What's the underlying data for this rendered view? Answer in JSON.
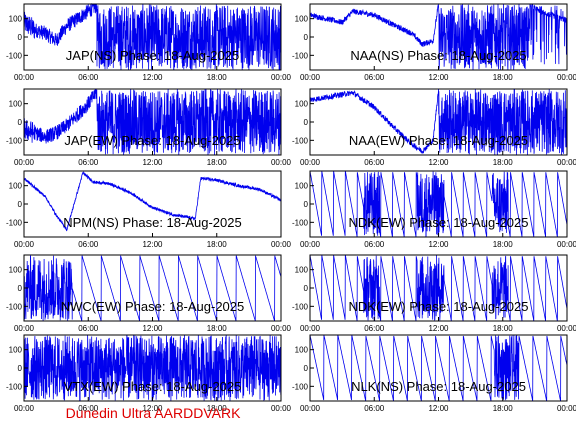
{
  "colors": {
    "trace": "#0000ee",
    "frame": "#000000",
    "footer": "#dd0000",
    "background": "#ffffff"
  },
  "footer": {
    "text": "Dunedin Ultra AARDDVARK"
  },
  "chart_data": [
    {
      "type": "line",
      "title": "JAP(NS) Phase: 18-Aug-2025",
      "ylim": [
        -180,
        180
      ],
      "yticks": [
        100,
        0,
        -100
      ],
      "xticks": [
        "00:00",
        "06:00",
        "12:00",
        "18:00",
        "00:00"
      ],
      "xlim_hours": [
        0,
        24
      ],
      "pattern": "noise-sat",
      "series": [
        {
          "values": [
            [
              0,
              80
            ],
            [
              1,
              40
            ],
            [
              2,
              20
            ],
            [
              3,
              -20
            ],
            [
              4,
              60
            ],
            [
              5,
              100
            ],
            [
              6,
              140
            ],
            [
              7,
              180
            ],
            [
              24,
              180
            ]
          ]
        }
      ]
    },
    {
      "type": "line",
      "title": "NAA(NS) Phase: 18-Aug-2025",
      "ylim": [
        -180,
        180
      ],
      "yticks": [
        100,
        0,
        -100
      ],
      "xticks": [
        "00:00",
        "06:00",
        "12:00",
        "18:00",
        "00:00"
      ],
      "xlim_hours": [
        0,
        24
      ],
      "pattern": "naa",
      "series": [
        {
          "values": [
            [
              0,
              120
            ],
            [
              3,
              80
            ],
            [
              4,
              140
            ],
            [
              6,
              120
            ],
            [
              8,
              60
            ],
            [
              9.5,
              20
            ],
            [
              10.5,
              -40
            ],
            [
              11.5,
              -20
            ],
            [
              12,
              180
            ],
            [
              20.5,
              180
            ],
            [
              21.5,
              140
            ],
            [
              23,
              110
            ],
            [
              24,
              90
            ]
          ]
        }
      ]
    },
    {
      "type": "line",
      "title": "JAP(EW) Phase: 18-Aug-2025",
      "ylim": [
        -180,
        180
      ],
      "yticks": [
        100,
        0,
        -100
      ],
      "xticks": [
        "00:00",
        "06:00",
        "12:00",
        "18:00",
        "00:00"
      ],
      "xlim_hours": [
        0,
        24
      ],
      "pattern": "noise-sat",
      "series": [
        {
          "values": [
            [
              0,
              -40
            ],
            [
              1,
              -60
            ],
            [
              2,
              -80
            ],
            [
              3,
              -60
            ],
            [
              4,
              -20
            ],
            [
              5,
              40
            ],
            [
              6,
              100
            ],
            [
              7,
              180
            ],
            [
              24,
              180
            ]
          ]
        }
      ]
    },
    {
      "type": "line",
      "title": "NAA(EW) Phase: 18-Aug-2025",
      "ylim": [
        -180,
        180
      ],
      "yticks": [
        100,
        0,
        -100
      ],
      "xticks": [
        "00:00",
        "06:00",
        "12:00",
        "18:00",
        "00:00"
      ],
      "xlim_hours": [
        0,
        24
      ],
      "pattern": "naa-ew",
      "series": [
        {
          "values": [
            [
              0,
              120
            ],
            [
              2,
              140
            ],
            [
              4,
              160
            ],
            [
              6,
              80
            ],
            [
              8,
              -40
            ],
            [
              9.5,
              -120
            ],
            [
              10.5,
              -160
            ],
            [
              11.5,
              -100
            ],
            [
              12,
              180
            ],
            [
              20.5,
              180
            ],
            [
              22,
              60
            ],
            [
              24,
              60
            ]
          ]
        }
      ]
    },
    {
      "type": "line",
      "title": "NPM(NS) Phase: 18-Aug-2025",
      "ylim": [
        -180,
        180
      ],
      "yticks": [
        100,
        0,
        -100
      ],
      "xticks": [
        "00:00",
        "06:00",
        "12:00",
        "18:00",
        "00:00"
      ],
      "xlim_hours": [
        0,
        24
      ],
      "pattern": "npm",
      "series": [
        {
          "values": [
            [
              0,
              140
            ],
            [
              2,
              40
            ],
            [
              3,
              -60
            ],
            [
              4,
              -140
            ],
            [
              5.5,
              170
            ],
            [
              6.5,
              120
            ],
            [
              8,
              110
            ],
            [
              10,
              60
            ],
            [
              12,
              -20
            ],
            [
              14,
              -60
            ],
            [
              16,
              -80
            ],
            [
              16.5,
              140
            ],
            [
              18,
              130
            ],
            [
              20,
              100
            ],
            [
              22,
              80
            ],
            [
              24,
              20
            ]
          ]
        }
      ]
    },
    {
      "type": "line",
      "title": "NDK(EW) Phase: 18-Aug-2025",
      "ylim": [
        -180,
        180
      ],
      "yticks": [
        100,
        0,
        -100
      ],
      "xticks": [
        "00:00",
        "06:00",
        "12:00",
        "18:00",
        "00:00"
      ],
      "xlim_hours": [
        0,
        24
      ],
      "pattern": "sawtooth-fast",
      "series": [
        {
          "values": [
            [
              0,
              180
            ],
            [
              1.1,
              -180
            ],
            [
              24,
              -180
            ]
          ]
        }
      ]
    },
    {
      "type": "line",
      "title": "NWC(EW) Phase: 18-Aug-2025",
      "ylim": [
        -180,
        180
      ],
      "yticks": [
        100,
        0,
        -100
      ],
      "xticks": [
        "00:00",
        "06:00",
        "12:00",
        "18:00",
        "00:00"
      ],
      "xlim_hours": [
        0,
        24
      ],
      "pattern": "nwc",
      "series": [
        {
          "values": [
            [
              0,
              180
            ],
            [
              2,
              -180
            ],
            [
              24,
              -180
            ]
          ]
        }
      ]
    },
    {
      "type": "line",
      "title": "NDK(EW) Phase: 18-Aug-2025",
      "ylim": [
        -180,
        180
      ],
      "yticks": [
        100,
        0,
        -100
      ],
      "xticks": [
        "00:00",
        "06:00",
        "12:00",
        "18:00",
        "00:00"
      ],
      "xlim_hours": [
        0,
        24
      ],
      "pattern": "sawtooth-fast",
      "series": [
        {
          "values": [
            [
              0,
              180
            ],
            [
              1.1,
              -180
            ],
            [
              24,
              -180
            ]
          ]
        }
      ]
    },
    {
      "type": "line",
      "title": "VTX(EW) Phase: 18-Aug-2025",
      "ylim": [
        -180,
        180
      ],
      "yticks": [
        100,
        0,
        -100
      ],
      "xticks": [
        "00:00",
        "06:00",
        "12:00",
        "18:00",
        "00:00"
      ],
      "xlim_hours": [
        0,
        24
      ],
      "pattern": "noise-full",
      "series": [
        {
          "values": [
            [
              0,
              0
            ],
            [
              24,
              0
            ]
          ]
        }
      ]
    },
    {
      "type": "line",
      "title": "NLK(NS) Phase: 18-Aug-2025",
      "ylim": [
        -180,
        180
      ],
      "yticks": [
        100,
        0,
        -100
      ],
      "xticks": [
        "00:00",
        "06:00",
        "12:00",
        "18:00",
        "00:00"
      ],
      "xlim_hours": [
        0,
        24
      ],
      "pattern": "sawtooth-slow",
      "series": [
        {
          "values": [
            [
              0,
              180
            ],
            [
              1.3,
              -180
            ],
            [
              24,
              -180
            ]
          ]
        }
      ]
    }
  ]
}
